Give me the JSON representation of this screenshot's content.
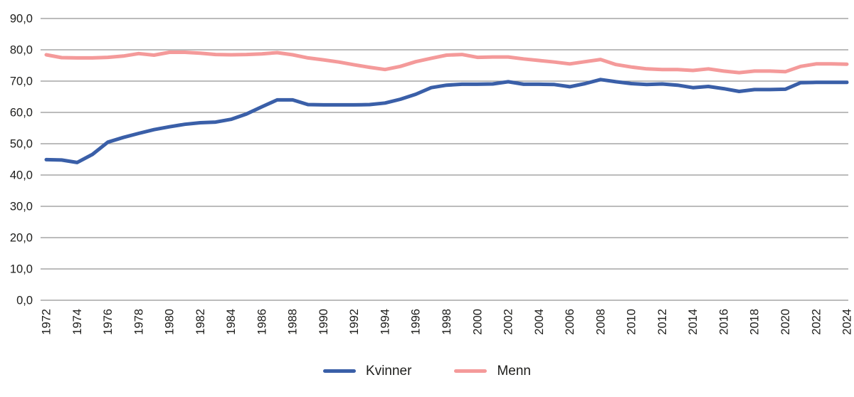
{
  "chart_data": {
    "type": "line",
    "title": "",
    "xlabel": "",
    "ylabel": "",
    "ylim": [
      0,
      90
    ],
    "ytick_step": 10,
    "xtick_step": 2,
    "grid": "horizontal",
    "legend_position": "bottom-center",
    "decimal_separator": ",",
    "y_tick_labels": [
      "0,0",
      "10,0",
      "20,0",
      "30,0",
      "40,0",
      "50,0",
      "60,0",
      "70,0",
      "80,0",
      "90,0"
    ],
    "x_tick_labels": [
      "1972",
      "1974",
      "1976",
      "1978",
      "1980",
      "1982",
      "1984",
      "1986",
      "1988",
      "1990",
      "1992",
      "1994",
      "1996",
      "1998",
      "2000",
      "2002",
      "2004",
      "2006",
      "2008",
      "2010",
      "2012",
      "2014",
      "2016",
      "2018",
      "2020",
      "2022",
      "2024"
    ],
    "x": [
      1972,
      1973,
      1974,
      1975,
      1976,
      1977,
      1978,
      1979,
      1980,
      1981,
      1982,
      1983,
      1984,
      1985,
      1986,
      1987,
      1988,
      1989,
      1990,
      1991,
      1992,
      1993,
      1994,
      1995,
      1996,
      1997,
      1998,
      1999,
      2000,
      2001,
      2002,
      2003,
      2004,
      2005,
      2006,
      2007,
      2008,
      2009,
      2010,
      2011,
      2012,
      2013,
      2014,
      2015,
      2016,
      2017,
      2018,
      2019,
      2020,
      2021,
      2022,
      2023,
      2024
    ],
    "series": [
      {
        "name": "Kvinner",
        "color": "#3a5fa8",
        "values": [
          44.9,
          44.8,
          44.0,
          46.6,
          50.5,
          52.0,
          53.3,
          54.5,
          55.4,
          56.2,
          56.7,
          56.9,
          57.8,
          59.5,
          61.8,
          64.0,
          64.0,
          62.5,
          62.4,
          62.4,
          62.4,
          62.5,
          63.0,
          64.2,
          65.8,
          67.9,
          68.7,
          69.0,
          69.0,
          69.1,
          69.8,
          69.0,
          69.0,
          68.9,
          68.2,
          69.2,
          70.5,
          69.8,
          69.2,
          68.9,
          69.1,
          68.7,
          67.9,
          68.3,
          67.6,
          66.7,
          67.3,
          67.3,
          67.4,
          69.5,
          69.6,
          69.6,
          69.6
        ]
      },
      {
        "name": "Menn",
        "color": "#f49a9a",
        "values": [
          78.4,
          77.5,
          77.4,
          77.4,
          77.6,
          78.0,
          78.8,
          78.3,
          79.2,
          79.2,
          78.9,
          78.5,
          78.4,
          78.5,
          78.7,
          79.1,
          78.4,
          77.4,
          76.8,
          76.1,
          75.2,
          74.4,
          73.7,
          74.7,
          76.2,
          77.3,
          78.3,
          78.5,
          77.6,
          77.7,
          77.7,
          77.1,
          76.6,
          76.1,
          75.5,
          76.2,
          76.9,
          75.3,
          74.5,
          73.9,
          73.7,
          73.7,
          73.4,
          73.9,
          73.2,
          72.7,
          73.2,
          73.2,
          73.0,
          74.7,
          75.5,
          75.5,
          75.4
        ]
      }
    ],
    "style": {
      "grid_color": "#949494",
      "tick_text_color": "#1d1d1b",
      "background": "#ffffff"
    }
  },
  "legend": {
    "items": [
      {
        "label": "Kvinner"
      },
      {
        "label": "Menn"
      }
    ]
  }
}
